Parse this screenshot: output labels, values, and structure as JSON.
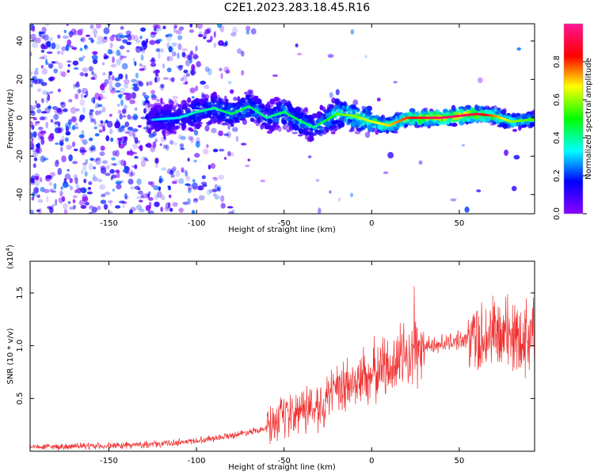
{
  "title": "C2E1.2023.283.18.45.R16",
  "chart_data": [
    {
      "type": "heatmap",
      "xlabel": "Height of straight line (km)",
      "ylabel": "Frequency (Hz)",
      "xlim": [
        -195,
        93
      ],
      "ylim": [
        -50,
        49
      ],
      "x_ticks": [
        "-150",
        "-100",
        "-50",
        "0",
        "50"
      ],
      "y_ticks": [
        "-40",
        "-20",
        "0",
        "20",
        "40"
      ],
      "colorbar": {
        "label": "Normalized spectral amplitude",
        "range": [
          0,
          1
        ],
        "ticks": [
          "0.0",
          "0.2",
          "0.4",
          "0.6",
          "0.8"
        ],
        "colors": [
          "#8b00ff",
          "#0000ff",
          "#00ffff",
          "#00ff00",
          "#ffff00",
          "#ff0000",
          "#ff1493"
        ]
      },
      "ridge_x": [
        -125,
        -110,
        -100,
        -90,
        -80,
        -70,
        -60,
        -50,
        -40,
        -33,
        -20,
        -10,
        0,
        10,
        20,
        30,
        40,
        50,
        60,
        70,
        80,
        90
      ],
      "ridge_y": [
        -1,
        0,
        3,
        5,
        2,
        6,
        0,
        3,
        -2,
        -5,
        2,
        1,
        -2,
        -4,
        0,
        0,
        0,
        1,
        2,
        1,
        -2,
        -1
      ],
      "ridge_amplitude": [
        0.2,
        0.25,
        0.3,
        0.3,
        0.35,
        0.35,
        0.3,
        0.35,
        0.35,
        0.3,
        0.45,
        0.5,
        0.55,
        0.6,
        0.7,
        0.8,
        0.85,
        0.85,
        0.8,
        0.65,
        0.5,
        0.45
      ],
      "grid": false
    },
    {
      "type": "line",
      "xlabel": "Height of straight line (km)",
      "ylabel": "SNR (10 * v/v)",
      "y_multiplier": "(x10",
      "y_multiplier_exp": "4",
      "xlim": [
        -195,
        93
      ],
      "ylim": [
        0,
        1.8
      ],
      "x_ticks": [
        "-150",
        "-100",
        "-50",
        "0",
        "50"
      ],
      "y_ticks": [
        "0.5",
        "1.0",
        "1.5"
      ],
      "color": "#f03030",
      "envelope_x": [
        -195,
        -150,
        -120,
        -100,
        -80,
        -60,
        -50,
        -40,
        -30,
        -20,
        -10,
        0,
        10,
        20,
        30,
        40,
        50,
        60,
        70,
        80,
        93
      ],
      "envelope_y": [
        0.04,
        0.05,
        0.07,
        0.1,
        0.15,
        0.22,
        0.3,
        0.38,
        0.45,
        0.55,
        0.65,
        0.73,
        0.82,
        0.9,
        0.98,
        1.02,
        1.05,
        1.08,
        1.1,
        1.1,
        1.1
      ],
      "grid": false
    }
  ]
}
